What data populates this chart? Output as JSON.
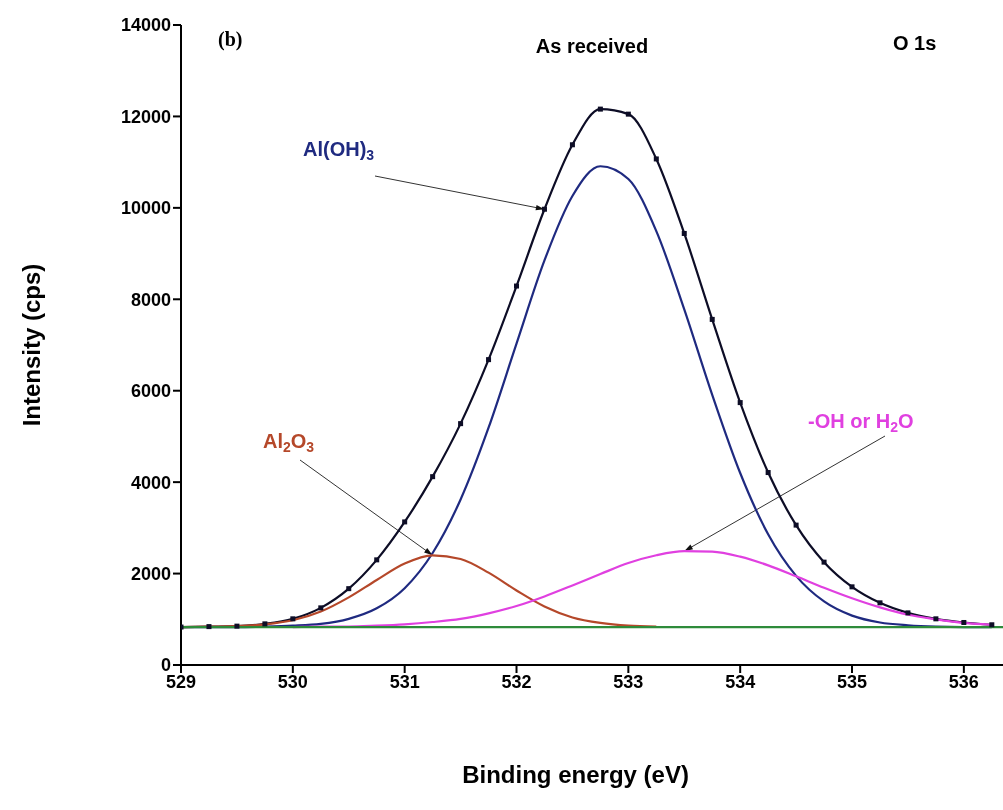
{
  "chart_data": {
    "type": "line",
    "title": "As received",
    "xlabel": "Binding energy (eV)",
    "ylabel": "Intensity (cps)",
    "annotations": [
      "(b)",
      "O 1s"
    ],
    "x": [
      529,
      529.25,
      529.5,
      529.75,
      530,
      530.25,
      530.5,
      530.75,
      531,
      531.25,
      531.5,
      531.75,
      532,
      532.25,
      532.5,
      532.75,
      533,
      533.25,
      533.5,
      533.75,
      534,
      534.25,
      534.5,
      534.75,
      535,
      535.25,
      535.5,
      535.75,
      536,
      536.25
    ],
    "series": [
      {
        "color": "#0d0d26",
        "marker": "square",
        "values": [
          830,
          840,
          850,
          900,
          1010,
          1250,
          1670,
          2300,
          3130,
          4120,
          5280,
          6680,
          8290,
          9970,
          11380,
          12160,
          12050,
          11070,
          9440,
          7560,
          5740,
          4210,
          3060,
          2250,
          1710,
          1360,
          1140,
          1010,
          930,
          880
        ]
      },
      {
        "name": "Al(OH)$_{3}$",
        "color": "#1f2a80",
        "values": [
          830,
          830,
          830,
          840,
          860,
          900,
          1010,
          1240,
          1680,
          2450,
          3620,
          5190,
          7030,
          8850,
          10260,
          10910,
          10630,
          9490,
          7780,
          5910,
          4200,
          2860,
          1950,
          1390,
          1080,
          930,
          870,
          840,
          830,
          830
        ]
      },
      {
        "name": "Al$_{2}$O$_{3}$",
        "color": "#b5482a",
        "values": [
          830,
          840,
          850,
          890,
          980,
          1170,
          1480,
          1860,
          2220,
          2400,
          2320,
          2020,
          1630,
          1280,
          1040,
          920,
          860,
          840,
          null,
          null,
          null,
          null,
          null,
          null,
          null,
          null,
          null,
          null,
          null,
          null
        ]
      },
      {
        "name": "-OH or H$_{2}$O",
        "color": "#e040e0",
        "values": [
          null,
          null,
          null,
          null,
          830,
          840,
          840,
          860,
          890,
          940,
          1010,
          1130,
          1290,
          1500,
          1740,
          1990,
          2230,
          2400,
          2490,
          2480,
          2370,
          2180,
          1940,
          1690,
          1460,
          1260,
          1100,
          1000,
          920,
          880
        ]
      },
      {
        "color": "#2e8b3a",
        "marker": "none",
        "x": [
          529,
          536.35
        ],
        "values": [
          830,
          830
        ]
      }
    ],
    "xlim": [
      529,
      536.35
    ],
    "xticks": [
      529,
      530,
      531,
      532,
      533,
      534,
      535,
      536
    ],
    "ylim": [
      0,
      14000
    ],
    "yticks": [
      0,
      2000,
      4000,
      6000,
      8000,
      10000,
      12000,
      14000
    ],
    "grid": false,
    "legend": false,
    "marker": "none",
    "line_style": "solid"
  }
}
